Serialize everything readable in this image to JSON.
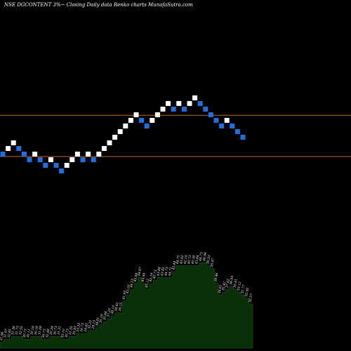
{
  "chart_data": {
    "type": "renko",
    "title": "NSE DGCONTENT 3%~ Closing Daily data Renko charts MunafaSutra.com",
    "colors": {
      "background": "#000000",
      "up_brick": "#ffffff",
      "down_brick": "#1e6fe0",
      "reference_line": "#c8641e",
      "volume_fill": "#0a300a"
    },
    "reference_lines": [
      {
        "price": 32.2,
        "label": ""
      },
      {
        "price": 30.0,
        "label": ""
      }
    ],
    "price_scale": {
      "min": 30.0,
      "max": 35.0,
      "note": "relative brick levels"
    },
    "bricks": [
      {
        "direction": "down",
        "level": 30.0
      },
      {
        "direction": "up",
        "level": 30.3
      },
      {
        "direction": "up",
        "level": 30.6
      },
      {
        "direction": "down",
        "level": 30.3
      },
      {
        "direction": "down",
        "level": 30.0
      },
      {
        "direction": "down",
        "level": 29.7
      },
      {
        "direction": "up",
        "level": 30.0
      },
      {
        "direction": "down",
        "level": 29.7
      },
      {
        "direction": "down",
        "level": 29.4
      },
      {
        "direction": "up",
        "level": 29.7
      },
      {
        "direction": "down",
        "level": 29.4
      },
      {
        "direction": "down",
        "level": 29.1
      },
      {
        "direction": "up",
        "level": 29.4
      },
      {
        "direction": "up",
        "level": 29.7
      },
      {
        "direction": "up",
        "level": 30.0
      },
      {
        "direction": "down",
        "level": 29.7
      },
      {
        "direction": "up",
        "level": 30.0
      },
      {
        "direction": "down",
        "level": 29.7
      },
      {
        "direction": "up",
        "level": 30.0
      },
      {
        "direction": "up",
        "level": 30.3
      },
      {
        "direction": "up",
        "level": 30.6
      },
      {
        "direction": "up",
        "level": 30.9
      },
      {
        "direction": "up",
        "level": 31.2
      },
      {
        "direction": "up",
        "level": 31.5
      },
      {
        "direction": "up",
        "level": 31.8
      },
      {
        "direction": "up",
        "level": 32.1
      },
      {
        "direction": "down",
        "level": 31.8
      },
      {
        "direction": "down",
        "level": 31.5
      },
      {
        "direction": "up",
        "level": 31.8
      },
      {
        "direction": "up",
        "level": 32.1
      },
      {
        "direction": "up",
        "level": 32.4
      },
      {
        "direction": "up",
        "level": 32.7
      },
      {
        "direction": "down",
        "level": 32.4
      },
      {
        "direction": "up",
        "level": 32.7
      },
      {
        "direction": "down",
        "level": 32.4
      },
      {
        "direction": "up",
        "level": 32.7
      },
      {
        "direction": "up",
        "level": 33.0
      },
      {
        "direction": "down",
        "level": 32.7
      },
      {
        "direction": "down",
        "level": 32.4
      },
      {
        "direction": "down",
        "level": 32.1
      },
      {
        "direction": "down",
        "level": 31.8
      },
      {
        "direction": "down",
        "level": 31.5
      },
      {
        "direction": "up",
        "level": 31.8
      },
      {
        "direction": "down",
        "level": 31.5
      },
      {
        "direction": "down",
        "level": 31.2
      },
      {
        "direction": "down",
        "level": 30.9
      }
    ],
    "volume": {
      "values": [
        2,
        3,
        3,
        4,
        4,
        4,
        3,
        3,
        4,
        4,
        4,
        3,
        3,
        4,
        4,
        4,
        3,
        3,
        4,
        4,
        5,
        5,
        5,
        6,
        6,
        7,
        8,
        9,
        10,
        11,
        12,
        12,
        16,
        18,
        20,
        22,
        24,
        22,
        20,
        22,
        23,
        24,
        24,
        24,
        24,
        26,
        28,
        28,
        28,
        28,
        28,
        28,
        29,
        29,
        28,
        27,
        22,
        18,
        19,
        20,
        21,
        20,
        19,
        18,
        17,
        15
      ],
      "labels": [
        "31.98",
        "31.97",
        "32.85",
        "31.38",
        "31.73",
        "32.55",
        "30.73",
        "30.11",
        "30.18",
        "30.18",
        "31.09",
        "30.73",
        "32.48",
        "30.34",
        "30.73",
        "31.31",
        "33.10",
        "30.73",
        "31.35",
        "35.83",
        "33.33",
        "30.73",
        "29.45",
        "32.22",
        "29.15",
        "34.81",
        "35.29",
        "35.64",
        "37.20",
        "38.10",
        "38.62",
        "39.15",
        "41.95",
        "43.20",
        "44.23",
        "45.84",
        "44.67",
        "43.44",
        "45.12",
        "42.19",
        "40.73",
        "43.84",
        "43.82",
        "44.73",
        "44.71",
        "43.44",
        "44.75",
        "43.82",
        "42.19",
        "40.73",
        "40.38",
        "43.84",
        "44.73",
        "36.94",
        "39.33",
        "35.87",
        "39.46",
        "34.61",
        "35.42",
        "37.62",
        "36.93",
        "35.41",
        "33.12",
        "31.77",
        "32.92",
        "32.57"
      ],
      "max": 30
    }
  }
}
